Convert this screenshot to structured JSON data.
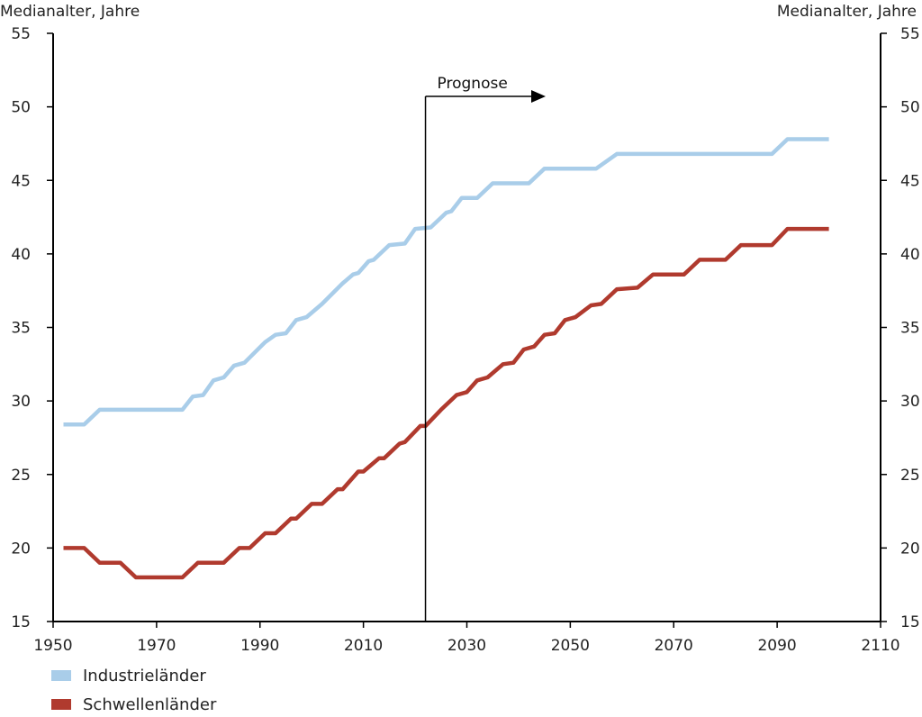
{
  "chart_data": {
    "type": "line",
    "ylabel_left": "Medianalter, Jahre",
    "ylabel_right": "Medianalter, Jahre",
    "xlim": [
      1950,
      2110
    ],
    "ylim": [
      15,
      55
    ],
    "x_ticks": [
      1950,
      1970,
      1990,
      2010,
      2030,
      2050,
      2070,
      2090,
      2110
    ],
    "y_ticks": [
      15,
      20,
      25,
      30,
      35,
      40,
      45,
      50,
      55
    ],
    "grid": false,
    "legend_position": "bottom-left",
    "annotation": {
      "label": "Prognose",
      "x": 2022
    },
    "series": [
      {
        "name": "Industrieländer",
        "color": "#a9cde9",
        "points": [
          [
            1952,
            28.4
          ],
          [
            1956,
            28.4
          ],
          [
            1959,
            29.4
          ],
          [
            1975,
            29.4
          ],
          [
            1977,
            30.3
          ],
          [
            1979,
            30.4
          ],
          [
            1981,
            31.4
          ],
          [
            1983,
            31.6
          ],
          [
            1985,
            32.4
          ],
          [
            1987,
            32.6
          ],
          [
            1991,
            34.0
          ],
          [
            1993,
            34.5
          ],
          [
            1995,
            34.6
          ],
          [
            1997,
            35.5
          ],
          [
            1999,
            35.7
          ],
          [
            2002,
            36.6
          ],
          [
            2006,
            38.0
          ],
          [
            2008,
            38.6
          ],
          [
            2009,
            38.7
          ],
          [
            2011,
            39.5
          ],
          [
            2012,
            39.6
          ],
          [
            2015,
            40.6
          ],
          [
            2018,
            40.7
          ],
          [
            2020,
            41.7
          ],
          [
            2023,
            41.8
          ],
          [
            2026,
            42.8
          ],
          [
            2027,
            42.9
          ],
          [
            2029,
            43.8
          ],
          [
            2032,
            43.8
          ],
          [
            2035,
            44.8
          ],
          [
            2042,
            44.8
          ],
          [
            2045,
            45.8
          ],
          [
            2055,
            45.8
          ],
          [
            2059,
            46.8
          ],
          [
            2089,
            46.8
          ],
          [
            2092,
            47.8
          ],
          [
            2100,
            47.8
          ]
        ]
      },
      {
        "name": "Schwellenländer",
        "color": "#b03a2e",
        "points": [
          [
            1952,
            20.0
          ],
          [
            1956,
            20.0
          ],
          [
            1959,
            19.0
          ],
          [
            1963,
            19.0
          ],
          [
            1966,
            18.0
          ],
          [
            1975,
            18.0
          ],
          [
            1978,
            19.0
          ],
          [
            1983,
            19.0
          ],
          [
            1986,
            20.0
          ],
          [
            1988,
            20.0
          ],
          [
            1991,
            21.0
          ],
          [
            1993,
            21.0
          ],
          [
            1996,
            22.0
          ],
          [
            1997,
            22.0
          ],
          [
            2000,
            23.0
          ],
          [
            2002,
            23.0
          ],
          [
            2005,
            24.0
          ],
          [
            2006,
            24.0
          ],
          [
            2009,
            25.2
          ],
          [
            2010,
            25.2
          ],
          [
            2013,
            26.1
          ],
          [
            2014,
            26.1
          ],
          [
            2017,
            27.1
          ],
          [
            2018,
            27.2
          ],
          [
            2021,
            28.3
          ],
          [
            2022,
            28.3
          ],
          [
            2025,
            29.4
          ],
          [
            2028,
            30.4
          ],
          [
            2030,
            30.6
          ],
          [
            2032,
            31.4
          ],
          [
            2034,
            31.6
          ],
          [
            2037,
            32.5
          ],
          [
            2039,
            32.6
          ],
          [
            2041,
            33.5
          ],
          [
            2043,
            33.7
          ],
          [
            2045,
            34.5
          ],
          [
            2047,
            34.6
          ],
          [
            2049,
            35.5
          ],
          [
            2051,
            35.7
          ],
          [
            2054,
            36.5
          ],
          [
            2056,
            36.6
          ],
          [
            2059,
            37.6
          ],
          [
            2063,
            37.7
          ],
          [
            2066,
            38.6
          ],
          [
            2072,
            38.6
          ],
          [
            2075,
            39.6
          ],
          [
            2080,
            39.6
          ],
          [
            2083,
            40.6
          ],
          [
            2089,
            40.6
          ],
          [
            2092,
            41.7
          ],
          [
            2100,
            41.7
          ]
        ]
      }
    ]
  }
}
